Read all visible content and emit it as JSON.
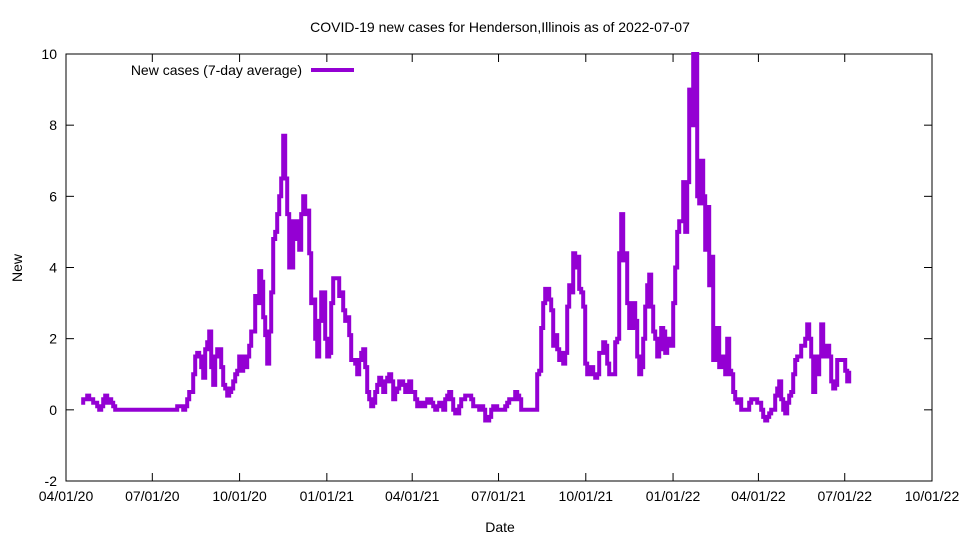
{
  "chart_data": {
    "type": "line",
    "title": "COVID-19 new cases for Henderson,Illinois as of 2022-07-07",
    "xlabel": "Date",
    "ylabel": "New",
    "ylim": [
      -2,
      10
    ],
    "yticks": [
      "-2",
      "0",
      "2",
      "4",
      "6",
      "8",
      "10"
    ],
    "xlim_days_since_2020_04_01": [
      0,
      913
    ],
    "xticks": [
      {
        "label": "04/01/20",
        "day": 0
      },
      {
        "label": "07/01/20",
        "day": 91
      },
      {
        "label": "10/01/20",
        "day": 183
      },
      {
        "label": "01/01/21",
        "day": 275
      },
      {
        "label": "04/01/21",
        "day": 365
      },
      {
        "label": "07/01/21",
        "day": 456
      },
      {
        "label": "10/01/21",
        "day": 548
      },
      {
        "label": "01/01/22",
        "day": 640
      },
      {
        "label": "04/01/22",
        "day": 730
      },
      {
        "label": "07/01/22",
        "day": 821
      },
      {
        "label": "10/01/22",
        "day": 913
      }
    ],
    "grid": false,
    "legend_position": "top-left",
    "series": [
      {
        "name": "New cases (7-day average)",
        "color": "#9400D3",
        "start_day": 16,
        "step_days": 2.1086,
        "values": [
          0.2,
          0.3,
          0.3,
          0.4,
          0.3,
          0.3,
          0.2,
          0.2,
          0.1,
          0,
          0.1,
          0.3,
          0.4,
          0.2,
          0.3,
          0.2,
          0.1,
          0,
          0,
          0,
          0,
          0,
          0,
          0,
          0,
          0,
          0,
          0,
          0,
          0,
          0,
          0,
          0,
          0,
          0,
          0,
          0,
          0,
          0,
          0,
          0,
          0,
          0,
          0,
          0,
          0,
          0,
          0,
          0.1,
          0.1,
          0.1,
          0,
          0.1,
          0.3,
          0.5,
          0.5,
          1.0,
          1.5,
          1.6,
          1.5,
          1.2,
          0.9,
          1.7,
          1.9,
          2.2,
          1.2,
          0.7,
          1.5,
          1.7,
          1.7,
          1.2,
          0.7,
          0.6,
          0.4,
          0.5,
          0.6,
          0.8,
          1.0,
          1.1,
          1.5,
          1.1,
          1.5,
          1.2,
          1.5,
          1.8,
          2.2,
          2.2,
          3.2,
          3.0,
          3.9,
          3.6,
          2.6,
          2.1,
          1.3,
          2.2,
          3.3,
          4.8,
          5.0,
          5.5,
          6.0,
          6.5,
          7.7,
          6.5,
          5.5,
          4.0,
          4.0,
          5.3,
          4.8,
          5.3,
          4.5,
          5.5,
          6.0,
          5.5,
          5.6,
          4.4,
          3.0,
          3.1,
          2.0,
          1.5,
          2.5,
          3.3,
          3.3,
          2.0,
          1.5,
          1.6,
          3.0,
          3.7,
          3.7,
          3.7,
          3.2,
          3.3,
          2.8,
          2.5,
          2.6,
          2.1,
          1.4,
          1.4,
          1.3,
          1.0,
          1.4,
          1.6,
          1.7,
          1.2,
          0.5,
          0.3,
          0.1,
          0.2,
          0.5,
          0.7,
          0.9,
          0.8,
          0.5,
          0.8,
          0.9,
          1.0,
          0.8,
          0.3,
          0.5,
          0.6,
          0.8,
          0.8,
          0.7,
          0.5,
          0.6,
          0.8,
          0.5,
          0.5,
          0.3,
          0.1,
          0.2,
          0.1,
          0.1,
          0.2,
          0.3,
          0.3,
          0.2,
          0.1,
          0,
          0.1,
          0.2,
          0.2,
          0,
          0.3,
          0.4,
          0.5,
          0.3,
          0,
          -0.1,
          -0.1,
          0.1,
          0.3,
          0.3,
          0.4,
          0.4,
          0.4,
          0.3,
          0.1,
          0.1,
          0.1,
          0,
          0.1,
          0,
          -0.3,
          -0.3,
          -0.2,
          0,
          0.1,
          0.1,
          0,
          0,
          0,
          0,
          0.1,
          0.2,
          0.3,
          0.3,
          0.3,
          0.5,
          0.4,
          0.3,
          0,
          0,
          0,
          0,
          0,
          0,
          0,
          0,
          1.0,
          1.1,
          2.3,
          3.0,
          3.4,
          3.4,
          3.1,
          2.8,
          1.8,
          2.1,
          1.7,
          1.4,
          1.6,
          1.3,
          1.6,
          2.9,
          3.5,
          3.3,
          4.4,
          4.0,
          4.3,
          3.4,
          3.3,
          2.9,
          1.3,
          1.0,
          1.2,
          1.2,
          1.0,
          0.9,
          1.0,
          1.6,
          1.6,
          1.9,
          1.8,
          1.3,
          1.0,
          1.0,
          1.0,
          1.9,
          2.0,
          4.4,
          5.5,
          4.2,
          4.4,
          3.0,
          2.3,
          2.3,
          3.0,
          2.5,
          1.5,
          1.0,
          1.2,
          2.0,
          2.9,
          3.5,
          3.8,
          2.9,
          2.2,
          2.0,
          1.5,
          1.7,
          2.3,
          2.2,
          1.6,
          2.0,
          2.0,
          1.8,
          3.0,
          4.0,
          5.0,
          5.3,
          5.3,
          6.4,
          5.0,
          6.4,
          9.0,
          8.0,
          10,
          10,
          6.0,
          5.8,
          7.0,
          6.0,
          4.5,
          5.7,
          3.5,
          4.3,
          1.4,
          2.0,
          2.3,
          1.2,
          1.5,
          1.2,
          1.0,
          2.0,
          1.1,
          1.0,
          0.5,
          0.3,
          0.2,
          0.3,
          0,
          0,
          0,
          0,
          0.2,
          0.3,
          0.3,
          0.3,
          0.2,
          0.2,
          0,
          -0.2,
          -0.3,
          -0.2,
          -0.1,
          0,
          0,
          0.4,
          0.6,
          0.8,
          0.3,
          0,
          -0.1,
          0.2,
          0.4,
          0.5,
          1.0,
          1.4,
          1.5,
          1.5,
          1.8,
          1.8,
          2.0,
          2.4,
          2.0,
          1.5,
          0.5,
          1.5,
          1.0,
          1.5,
          2.4,
          1.8,
          1.5,
          1.8,
          1.5,
          0.8,
          0.6,
          0.7,
          1.4,
          1.4,
          1.4,
          1.4,
          1.1,
          0.8,
          1.1
        ]
      }
    ]
  }
}
